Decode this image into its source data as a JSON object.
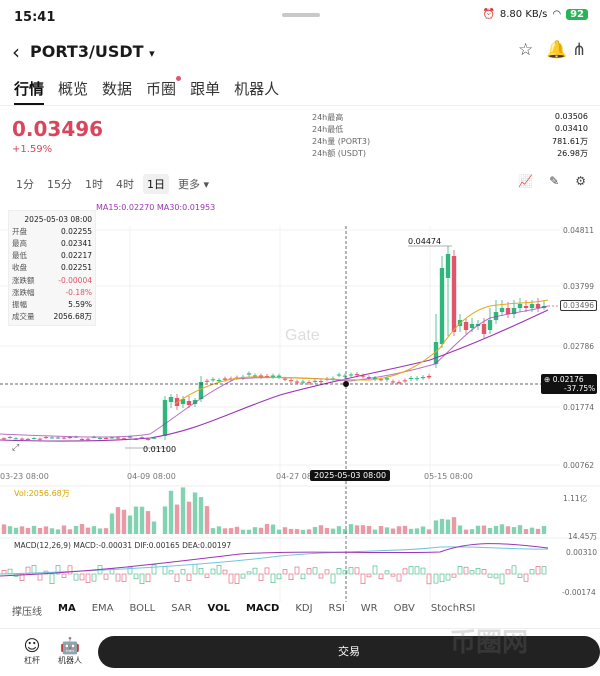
{
  "status": {
    "time": "15:41",
    "net_speed": "8.80 KB/s",
    "battery": "92"
  },
  "header": {
    "pair": "PORT3/USDT",
    "caret": "▾"
  },
  "tabs": [
    {
      "label": "行情"
    },
    {
      "label": "概览"
    },
    {
      "label": "数据"
    },
    {
      "label": "币圈"
    },
    {
      "label": "跟单"
    },
    {
      "label": "机器人"
    }
  ],
  "quote": {
    "price": "0.03496",
    "change": "+1.59%"
  },
  "stats": [
    {
      "label": "24h最高",
      "value": "0.03506"
    },
    {
      "label": "24h最低",
      "value": "0.03410"
    },
    {
      "label": "24h量 (PORT3)",
      "value": "781.61万"
    },
    {
      "label": "24h额 (USDT)",
      "value": "26.98万"
    }
  ],
  "intervals": [
    {
      "label": "1分"
    },
    {
      "label": "15分"
    },
    {
      "label": "1时"
    },
    {
      "label": "4时"
    },
    {
      "label": "1日"
    },
    {
      "label": "更多 ▾"
    }
  ],
  "chart": {
    "ma_legend": "MA15:0.02270   MA30:0.01953",
    "ohlc": [
      {
        "label": "",
        "value": "2025-05-03 08:00"
      },
      {
        "label": "开盘",
        "value": "0.02255"
      },
      {
        "label": "最高",
        "value": "0.02341"
      },
      {
        "label": "最低",
        "value": "0.02217"
      },
      {
        "label": "收盘",
        "value": "0.02251"
      },
      {
        "label": "涨跌额",
        "value": "-0.00004"
      },
      {
        "label": "涨跌幅",
        "value": "-0.18%"
      },
      {
        "label": "振幅",
        "value": "5.59%"
      },
      {
        "label": "成交量",
        "value": "2056.68万"
      }
    ],
    "y_ticks": [
      "0.04811",
      "0.03799",
      "0.02786",
      "0.01774",
      "0.00762"
    ],
    "current_price": "0.03496",
    "crosshair_price": "0.02176",
    "crosshair_pct": "-37.75%",
    "crosshair_date": "2025-05-03 08:00",
    "x_ticks": [
      "03-23 08:00",
      "04-09 08:00",
      "04-27 08",
      "05-15 08:00"
    ],
    "high_marker": "0.04474",
    "low_marker": "0.01100",
    "watermark": "Gate",
    "vol_label": "Vol:2056.68万",
    "vol_ticks": [
      "1.11亿",
      "14.45万"
    ],
    "macd_label": "MACD(12,26,9)  MACD:-0.00031  DIF:0.00165  DEA:0.00197",
    "macd_ticks": [
      "0.00310",
      "-0.00174"
    ]
  },
  "indicators": [
    "撑压线",
    "MA",
    "EMA",
    "BOLL",
    "SAR",
    "VOL",
    "MACD",
    "KDJ",
    "RSI",
    "WR",
    "OBV",
    "StochRSI"
  ],
  "bottom": {
    "leverage": "杠杆",
    "robot": "机器人",
    "trade": "交易"
  },
  "colors": {
    "up": "#2fb67d",
    "down": "#e0556a",
    "ma1": "#e6a817",
    "ma2": "#9b35b5"
  },
  "watermark_text": "币圈网"
}
